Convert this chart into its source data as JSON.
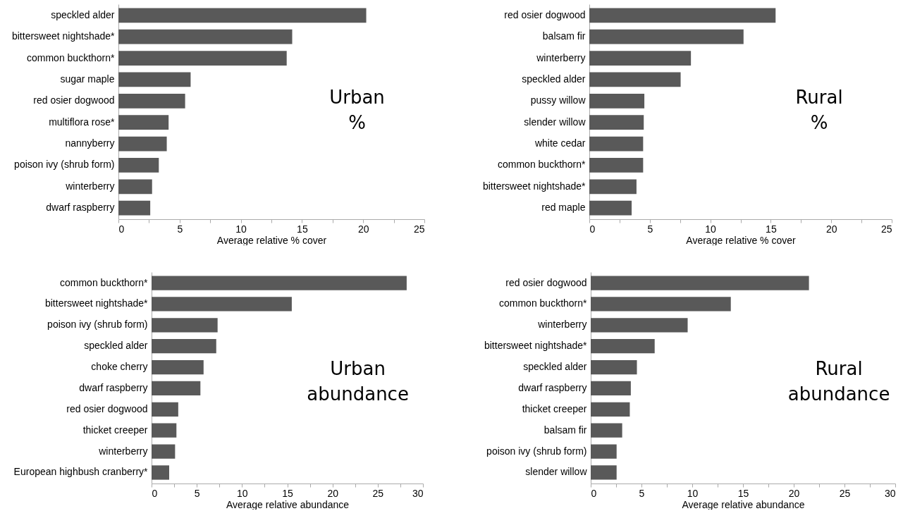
{
  "chart_data": [
    {
      "type": "bar",
      "orientation": "horizontal",
      "categories": [
        "speckled alder",
        "bittersweet nightshade*",
        "common buckthorn*",
        "sugar maple",
        "red osier dogwood",
        "multiflora rose*",
        "nannyberry",
        "poison ivy (shrub form)",
        "winterberry",
        "dwarf raspberry"
      ],
      "series": [
        {
          "color": "#595959",
          "values": [
            20.25,
            14.2,
            13.75,
            5.9,
            5.45,
            4.1,
            3.95,
            3.3,
            2.75,
            2.6
          ]
        }
      ],
      "xlabel": "Average relative % cover",
      "xlim": [
        0,
        25
      ],
      "xticks": [
        0,
        {
          "value": 2.5,
          "label": null
        },
        5,
        {
          "value": 7.5,
          "label": null
        },
        10,
        {
          "value": 12.5,
          "label": null
        },
        15,
        {
          "value": 17.5,
          "label": null
        },
        20,
        {
          "value": 22.5,
          "label": null
        },
        25
      ],
      "annotations": [
        "Urban",
        "%"
      ],
      "grid": false,
      "legend": false
    },
    {
      "type": "bar",
      "orientation": "horizontal",
      "categories": [
        "red osier dogwood",
        "balsam fir",
        "winterberry",
        "speckled alder",
        "pussy willow",
        "slender willow",
        "white cedar",
        "common buckthorn*",
        "bittersweet nightshade*",
        "red maple"
      ],
      "series": [
        {
          "color": "#595959",
          "values": [
            15.4,
            12.75,
            8.4,
            7.55,
            4.55,
            4.5,
            4.45,
            4.45,
            3.9,
            3.5
          ]
        }
      ],
      "xlabel": "Average relative % cover",
      "xlim": [
        0,
        25
      ],
      "xticks": [
        0,
        {
          "value": 2.5,
          "label": null
        },
        5,
        {
          "value": 7.5,
          "label": null
        },
        10,
        {
          "value": 12.5,
          "label": null
        },
        15,
        {
          "value": 17.5,
          "label": null
        },
        20,
        {
          "value": 22.5,
          "label": null
        },
        25
      ],
      "annotations": [
        "Rural",
        "%"
      ],
      "grid": false,
      "legend": false
    },
    {
      "type": "bar",
      "orientation": "horizontal",
      "categories": [
        "common buckthorn*",
        "bittersweet nightshade*",
        "poison ivy (shrub form)",
        "speckled alder",
        "choke cherry",
        "dwarf raspberry",
        "red osier dogwood",
        "thicket creeper",
        "winterberry",
        "European highbush cranberry*"
      ],
      "series": [
        {
          "color": "#595959",
          "values": [
            28.2,
            15.5,
            7.3,
            7.15,
            5.75,
            5.4,
            2.95,
            2.75,
            2.6,
            1.95
          ]
        }
      ],
      "xlabel": "Average relative abundance",
      "xlim": [
        0,
        30
      ],
      "xticks": [
        0,
        {
          "value": 2.5,
          "label": null
        },
        5,
        {
          "value": 7.5,
          "label": null
        },
        10,
        {
          "value": 12.5,
          "label": null
        },
        15,
        {
          "value": 17.5,
          "label": null
        },
        20,
        {
          "value": 22.5,
          "label": null
        },
        25,
        {
          "value": 27.5,
          "label": null
        },
        30
      ],
      "annotations": [
        "Urban",
        "abundance"
      ],
      "grid": false,
      "legend": false
    },
    {
      "type": "bar",
      "orientation": "horizontal",
      "categories": [
        "red osier dogwood",
        "common buckthorn*",
        "winterberry",
        "bittersweet nightshade*",
        "speckled alder",
        "dwarf raspberry",
        "thicket creeper",
        "balsam fir",
        "poison ivy (shrub form)",
        "slender willow"
      ],
      "series": [
        {
          "color": "#595959",
          "values": [
            21.5,
            13.8,
            9.55,
            6.3,
            4.55,
            3.95,
            3.85,
            3.1,
            2.55,
            2.55
          ]
        }
      ],
      "xlabel": "Average relative abundance",
      "xlim": [
        0,
        30
      ],
      "xticks": [
        0,
        {
          "value": 2.5,
          "label": null
        },
        5,
        {
          "value": 7.5,
          "label": null
        },
        10,
        {
          "value": 12.5,
          "label": null
        },
        15,
        {
          "value": 17.5,
          "label": null
        },
        20,
        {
          "value": 22.5,
          "label": null
        },
        25,
        {
          "value": 27.5,
          "label": null
        },
        30
      ],
      "annotations": [
        "Rural",
        "abundance"
      ],
      "grid": false,
      "legend": false
    }
  ]
}
